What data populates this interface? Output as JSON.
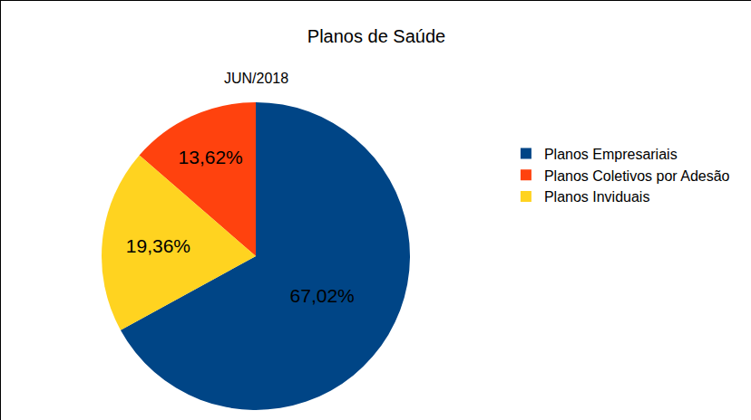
{
  "chart_data": {
    "type": "pie",
    "title": "Planos de Saúde",
    "subtitle": "JUN/2018",
    "categories": [
      "Planos Empresariais",
      "Planos Coletivos por Adesão",
      "Planos Inviduais"
    ],
    "values": [
      67.02,
      13.62,
      19.36
    ],
    "value_labels": [
      "67,02%",
      "13,62%",
      "19,36%"
    ],
    "colors": [
      "#004586",
      "#ff420e",
      "#ffd320"
    ],
    "data_labels": true,
    "legend": "right"
  }
}
